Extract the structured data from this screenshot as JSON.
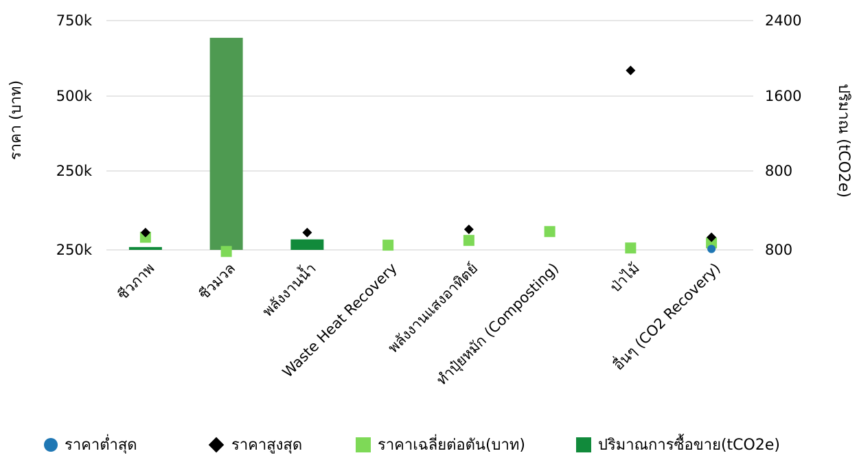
{
  "chart_data": {
    "type": "bar",
    "title": "",
    "ylabel_left": "ราคา (บาท)",
    "ylabel_right": "ปริมาณ (tCO2e)",
    "left_ticks": [
      "250k",
      "250k",
      "500k",
      "750k"
    ],
    "right_ticks": [
      "800",
      "800",
      "1600",
      "2400"
    ],
    "categories": [
      "ชีวภาพ",
      "ชีวมวล",
      "พลังงานน้ำ",
      "Waste Heat Recovery",
      "พลังงานแสงอาทิตย์",
      "ทำปุ๋ยหมัก (Composting)",
      "ป่าไม้",
      "อื่นๆ (CO2 Recovery)"
    ],
    "series": [
      {
        "name": "ราคาต่ำสุด",
        "type": "scatter",
        "marker": "circle",
        "color": "#1f77b4",
        "values": [
          null,
          null,
          null,
          null,
          null,
          null,
          null,
          3000
        ]
      },
      {
        "name": "ราคาสูงสุด",
        "type": "scatter",
        "marker": "diamond",
        "color": "#000000",
        "values": [
          55000,
          null,
          55000,
          null,
          65000,
          null,
          585000,
          40000
        ]
      },
      {
        "name": "ราคาเฉลี่ยต่อตัน(บาท)",
        "type": "scatter",
        "marker": "square",
        "color": "#7ed957",
        "values": [
          40000,
          -5000,
          null,
          15000,
          30000,
          58000,
          6000,
          22000
        ]
      },
      {
        "name": "ปริมาณการซื้อขาย(tCO2e)",
        "type": "bar",
        "axis": "right",
        "color": "#4e9a51",
        "colors": [
          "#118a3b",
          "#4e9a51",
          "#118a3b",
          "#118a3b",
          "#118a3b",
          "#118a3b",
          "#118a3b",
          "#118a3b"
        ],
        "values": [
          30,
          2220,
          110,
          0,
          0,
          0,
          0,
          0
        ]
      }
    ],
    "legend_position": "bottom",
    "grid": true
  }
}
